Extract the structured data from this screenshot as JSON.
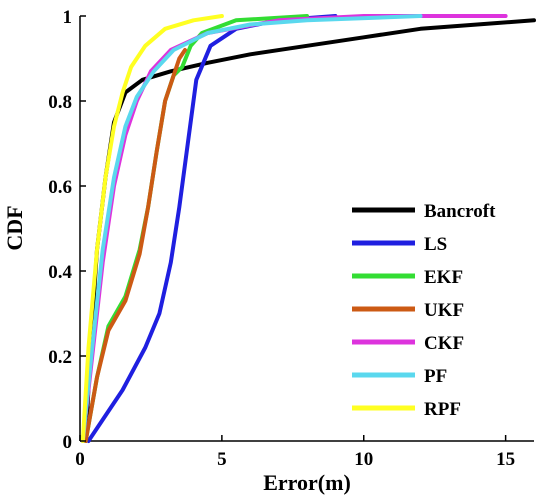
{
  "chart_data": {
    "type": "line",
    "xlabel": "Error(m)",
    "ylabel": "CDF",
    "xlim": [
      0,
      16
    ],
    "ylim": [
      0,
      1
    ],
    "xticks": [
      0,
      5,
      10,
      15
    ],
    "yticks": [
      0,
      0.2,
      0.4,
      0.6,
      0.8,
      1
    ],
    "xtick_labels": [
      "0",
      "5",
      "10",
      "15"
    ],
    "ytick_labels": [
      "0",
      "0.2",
      "0.4",
      "0.6",
      "0.8",
      "1"
    ],
    "grid": false,
    "legend_position": "lower-right",
    "series": [
      {
        "name": "Bancroft",
        "color": "#000000",
        "points": [
          [
            0.2,
            0
          ],
          [
            0.4,
            0.25
          ],
          [
            0.6,
            0.45
          ],
          [
            0.9,
            0.62
          ],
          [
            1.2,
            0.75
          ],
          [
            1.6,
            0.82
          ],
          [
            2.2,
            0.85
          ],
          [
            3.2,
            0.87
          ],
          [
            4.5,
            0.89
          ],
          [
            6,
            0.91
          ],
          [
            8,
            0.93
          ],
          [
            10,
            0.95
          ],
          [
            12,
            0.97
          ],
          [
            14,
            0.98
          ],
          [
            16,
            0.99
          ]
        ]
      },
      {
        "name": "LS",
        "color": "#1f1fe0",
        "points": [
          [
            0.3,
            0
          ],
          [
            0.8,
            0.05
          ],
          [
            1.5,
            0.12
          ],
          [
            2.3,
            0.22
          ],
          [
            2.8,
            0.3
          ],
          [
            3.2,
            0.42
          ],
          [
            3.5,
            0.55
          ],
          [
            3.8,
            0.7
          ],
          [
            4.1,
            0.85
          ],
          [
            4.6,
            0.93
          ],
          [
            5.5,
            0.97
          ],
          [
            7,
            0.99
          ],
          [
            9,
            1.0
          ]
        ]
      },
      {
        "name": "EKF",
        "color": "#33dd33",
        "points": [
          [
            0.2,
            0
          ],
          [
            0.6,
            0.15
          ],
          [
            1,
            0.27
          ],
          [
            1.6,
            0.34
          ],
          [
            2.1,
            0.45
          ],
          [
            2.4,
            0.55
          ],
          [
            2.7,
            0.68
          ],
          [
            3,
            0.8
          ],
          [
            3.3,
            0.86
          ],
          [
            3.6,
            0.88
          ],
          [
            3.9,
            0.93
          ],
          [
            4.3,
            0.96
          ],
          [
            5.5,
            0.99
          ],
          [
            8,
            1.0
          ]
        ]
      },
      {
        "name": "UKF",
        "color": "#cc5a14",
        "points": [
          [
            0.2,
            0
          ],
          [
            0.6,
            0.15
          ],
          [
            1,
            0.26
          ],
          [
            1.6,
            0.33
          ],
          [
            2.1,
            0.44
          ],
          [
            2.4,
            0.55
          ],
          [
            2.7,
            0.68
          ],
          [
            3,
            0.8
          ],
          [
            3.3,
            0.86
          ],
          [
            3.5,
            0.9
          ],
          [
            3.7,
            0.92
          ]
        ]
      },
      {
        "name": "CKF",
        "color": "#dd33dd",
        "points": [
          [
            0.1,
            0
          ],
          [
            0.4,
            0.18
          ],
          [
            0.8,
            0.42
          ],
          [
            1.2,
            0.6
          ],
          [
            1.6,
            0.72
          ],
          [
            2,
            0.8
          ],
          [
            2.5,
            0.87
          ],
          [
            3.2,
            0.92
          ],
          [
            4.5,
            0.96
          ],
          [
            7,
            0.99
          ],
          [
            10,
            1.0
          ],
          [
            15,
            1.0
          ]
        ]
      },
      {
        "name": "PF",
        "color": "#5ad8ee",
        "points": [
          [
            0.1,
            0
          ],
          [
            0.4,
            0.2
          ],
          [
            0.8,
            0.45
          ],
          [
            1.2,
            0.62
          ],
          [
            1.6,
            0.74
          ],
          [
            2,
            0.81
          ],
          [
            2.6,
            0.87
          ],
          [
            3.3,
            0.92
          ],
          [
            4.5,
            0.96
          ],
          [
            6,
            0.98
          ],
          [
            8,
            0.99
          ],
          [
            12,
            1.0
          ]
        ]
      },
      {
        "name": "RPF",
        "color": "#ffff22",
        "points": [
          [
            0.1,
            0
          ],
          [
            0.3,
            0.22
          ],
          [
            0.6,
            0.45
          ],
          [
            0.9,
            0.62
          ],
          [
            1.2,
            0.74
          ],
          [
            1.5,
            0.82
          ],
          [
            1.8,
            0.88
          ],
          [
            2.3,
            0.93
          ],
          [
            3,
            0.97
          ],
          [
            4,
            0.99
          ],
          [
            5,
            1.0
          ]
        ]
      }
    ]
  }
}
